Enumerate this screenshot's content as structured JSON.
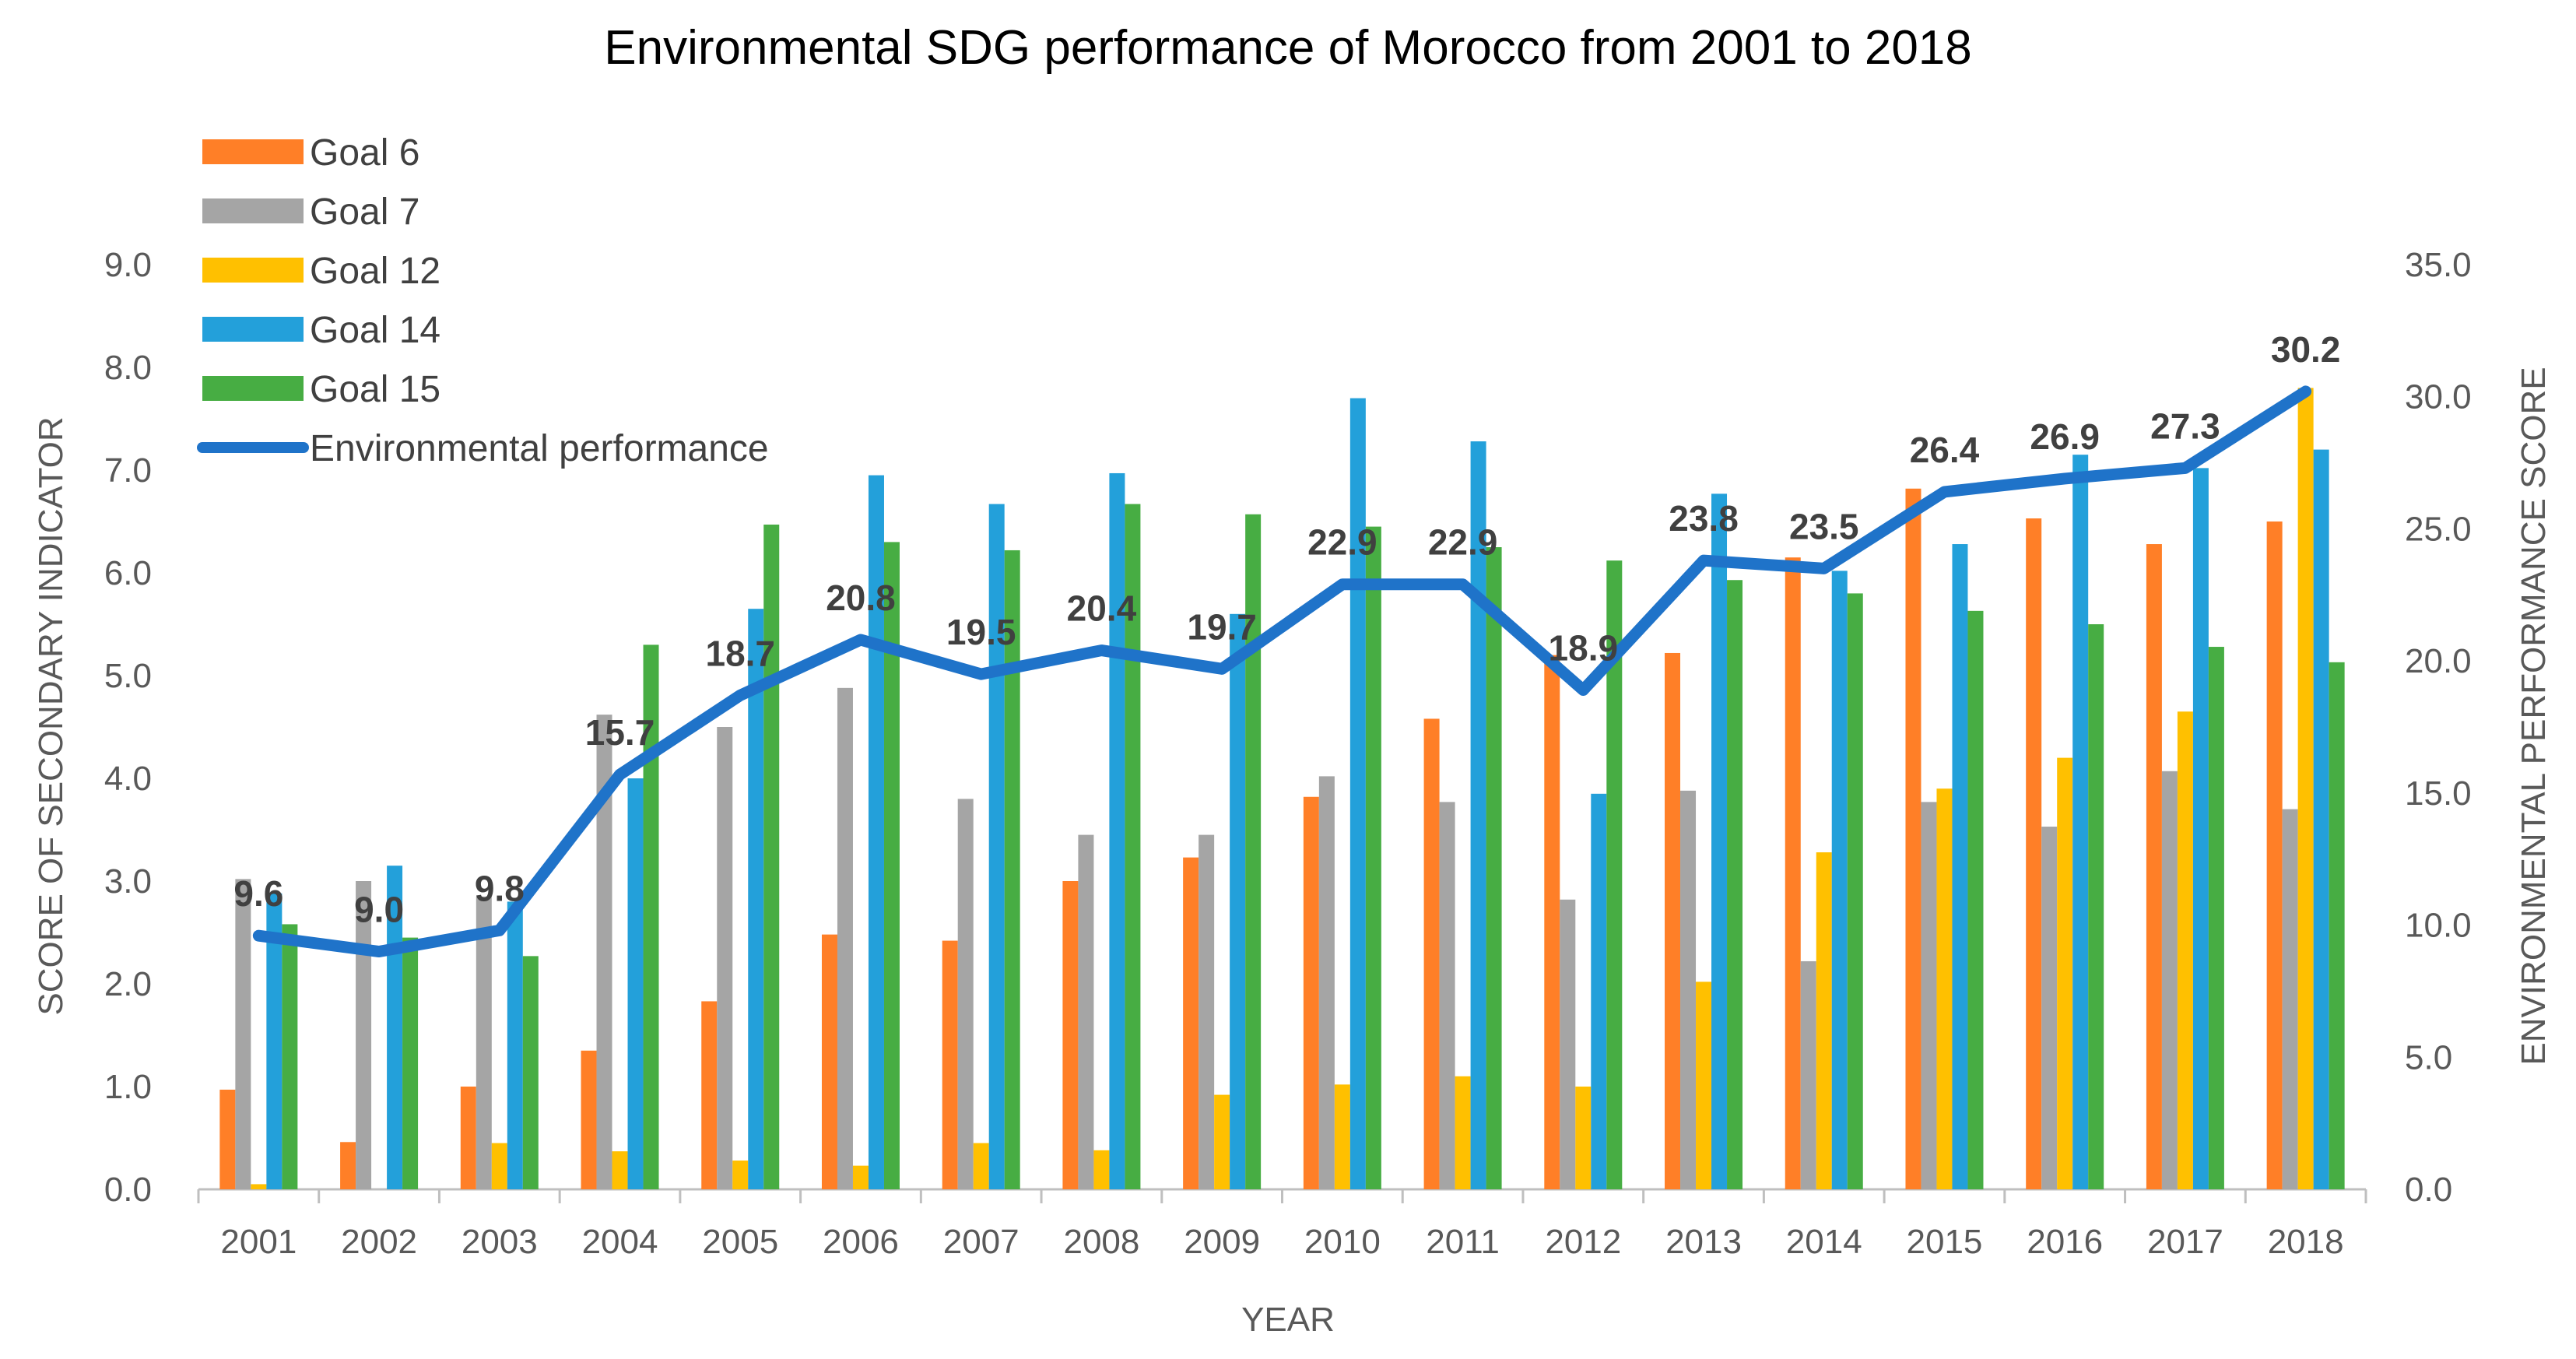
{
  "chart_data": {
    "type": "bar",
    "title": "Environmental SDG performance of Morocco from 2001 to 2018",
    "xlabel": "YEAR",
    "ylabel": "SCORE OF SECONDARY INDICATOR",
    "y2label": "ENVIRONMENTAL PERFORMANCE SCORE",
    "ylim": [
      0,
      9
    ],
    "y2lim": [
      0,
      35
    ],
    "yticks": [
      "0.0",
      "1.0",
      "2.0",
      "3.0",
      "4.0",
      "5.0",
      "6.0",
      "7.0",
      "8.0",
      "9.0"
    ],
    "y2ticks": [
      "0.0",
      "5.0",
      "10.0",
      "15.0",
      "20.0",
      "25.0",
      "30.0",
      "35.0"
    ],
    "categories": [
      "2001",
      "2002",
      "2003",
      "2004",
      "2005",
      "2006",
      "2007",
      "2008",
      "2009",
      "2010",
      "2011",
      "2012",
      "2013",
      "2014",
      "2015",
      "2016",
      "2017",
      "2018"
    ],
    "series": [
      {
        "name": "Goal 6",
        "color": "#FF7F27",
        "values": [
          0.97,
          0.46,
          1.0,
          1.35,
          1.83,
          2.48,
          2.42,
          3.0,
          3.23,
          3.82,
          4.58,
          5.2,
          5.22,
          6.15,
          6.82,
          6.53,
          6.28,
          6.5
        ]
      },
      {
        "name": "Goal 7",
        "color": "#A5A5A5",
        "values": [
          3.02,
          3.0,
          2.85,
          4.62,
          4.5,
          4.88,
          3.8,
          3.45,
          3.45,
          4.02,
          3.77,
          2.82,
          3.88,
          2.22,
          3.77,
          3.53,
          4.07,
          3.7
        ]
      },
      {
        "name": "Goal 12",
        "color": "#FFC000",
        "values": [
          0.05,
          0.0,
          0.45,
          0.37,
          0.28,
          0.23,
          0.45,
          0.38,
          0.92,
          1.02,
          1.1,
          1.0,
          2.02,
          3.28,
          3.9,
          4.2,
          4.65,
          7.8
        ]
      },
      {
        "name": "Goal 14",
        "color": "#23A0DA",
        "values": [
          2.88,
          3.15,
          2.8,
          4.0,
          5.65,
          6.95,
          6.67,
          6.97,
          5.6,
          7.7,
          7.28,
          3.85,
          6.77,
          6.02,
          6.28,
          7.15,
          7.02,
          7.2
        ]
      },
      {
        "name": "Goal 15",
        "color": "#47AD43",
        "values": [
          2.58,
          2.45,
          2.27,
          5.3,
          6.47,
          6.3,
          6.22,
          6.67,
          6.57,
          6.45,
          6.25,
          6.12,
          5.93,
          5.8,
          5.63,
          5.5,
          5.28,
          5.13
        ]
      }
    ],
    "line_series": {
      "name": "Environmental performance",
      "color": "#1F73C9",
      "axis": "right",
      "values": [
        9.6,
        9.0,
        9.8,
        15.7,
        18.7,
        20.8,
        19.5,
        20.4,
        19.7,
        22.9,
        22.9,
        18.9,
        23.8,
        23.5,
        26.4,
        26.9,
        27.3,
        30.2
      ],
      "labels": [
        "9.6",
        "9.0",
        "9.8",
        "15.7",
        "18.7",
        "20.8",
        "19.5",
        "20.4",
        "19.7",
        "22.9",
        "22.9",
        "18.9",
        "23.8",
        "23.5",
        "26.4",
        "26.9",
        "27.3",
        "30.2"
      ]
    },
    "legend": "top-left"
  }
}
